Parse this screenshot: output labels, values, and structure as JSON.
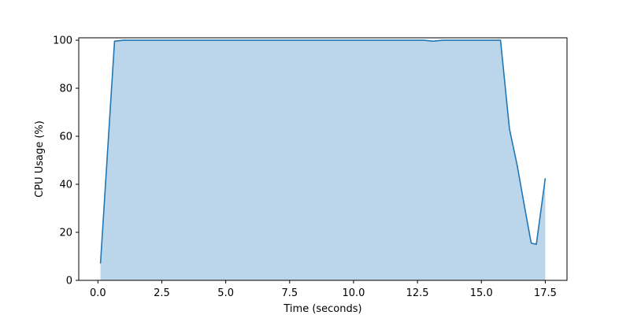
{
  "chart_data": {
    "type": "area",
    "title": "",
    "xlabel": "Time (seconds)",
    "ylabel": "CPU Usage (%)",
    "xlim": [
      -0.75,
      18.35
    ],
    "ylim": [
      0,
      101
    ],
    "xticks": [
      0.0,
      2.5,
      5.0,
      7.5,
      10.0,
      12.5,
      15.0,
      17.5
    ],
    "xtick_labels": [
      "0.0",
      "2.5",
      "5.0",
      "7.5",
      "10.0",
      "12.5",
      "15.0",
      "17.5"
    ],
    "yticks": [
      0,
      20,
      40,
      60,
      80,
      100
    ],
    "ytick_labels": [
      "0",
      "20",
      "40",
      "60",
      "80",
      "100"
    ],
    "grid": false,
    "series": [
      {
        "line_color": "#1f77b4",
        "fill_color": "#bbd6ea",
        "x": [
          0.1,
          0.65,
          1.0,
          1.5,
          2.0,
          2.5,
          3.0,
          3.5,
          4.0,
          4.5,
          5.0,
          5.5,
          6.0,
          6.5,
          7.0,
          7.5,
          8.0,
          8.5,
          9.0,
          9.5,
          10.0,
          10.5,
          11.0,
          11.5,
          12.0,
          12.5,
          12.75,
          13.1,
          13.5,
          14.0,
          14.5,
          15.0,
          15.5,
          15.75,
          16.1,
          16.4,
          16.7,
          16.95,
          17.15,
          17.5
        ],
        "y": [
          7,
          99.6,
          100,
          100,
          100,
          100,
          100,
          100,
          100,
          100,
          100,
          100,
          100,
          100,
          100,
          100,
          100,
          100,
          100,
          100,
          100,
          100,
          100,
          100,
          100,
          100,
          100,
          99.6,
          100,
          100,
          100,
          100,
          100,
          100,
          63,
          48,
          30,
          15.5,
          15,
          42.5
        ]
      }
    ]
  }
}
